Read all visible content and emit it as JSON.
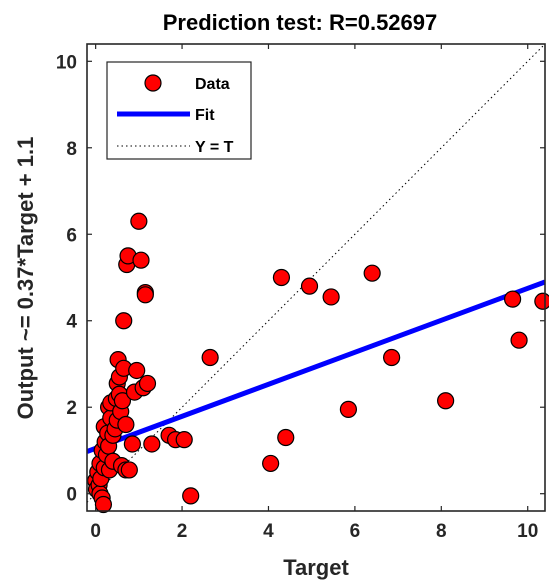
{
  "chart_data": {
    "type": "scatter",
    "title": "Prediction test: R=0.52697",
    "xlabel": "Target",
    "ylabel": "Output ~= 0.37*Target + 1.1",
    "xlim": [
      -0.2,
      10.4
    ],
    "ylim": [
      -0.4,
      10.4
    ],
    "xticks": [
      0,
      2,
      4,
      6,
      8,
      10
    ],
    "yticks": [
      0,
      2,
      4,
      6,
      8,
      10
    ],
    "grid": false,
    "legend_position": "top-left",
    "legend": [
      {
        "label": "Data",
        "marker": "circle",
        "color": "#ff0000"
      },
      {
        "label": "Fit",
        "style": "solid",
        "color": "#0000ff"
      },
      {
        "label": "Y = T",
        "style": "dotted",
        "color": "#000000"
      }
    ],
    "fit": {
      "slope": 0.37,
      "intercept": 1.05
    },
    "identity_line": {
      "from": -0.2,
      "to": 10.4
    },
    "series": [
      {
        "name": "Data",
        "color": "#ff0000",
        "points": [
          [
            0.0,
            0.3
          ],
          [
            0.02,
            0.1
          ],
          [
            0.05,
            0.5
          ],
          [
            0.08,
            0.2
          ],
          [
            0.1,
            0.0
          ],
          [
            0.1,
            0.7
          ],
          [
            0.12,
            0.35
          ],
          [
            0.15,
            -0.1
          ],
          [
            0.15,
            1.0
          ],
          [
            0.18,
            -0.25
          ],
          [
            0.2,
            0.6
          ],
          [
            0.2,
            1.55
          ],
          [
            0.22,
            1.2
          ],
          [
            0.25,
            0.9
          ],
          [
            0.28,
            1.4
          ],
          [
            0.3,
            1.1
          ],
          [
            0.3,
            2.0
          ],
          [
            0.32,
            0.55
          ],
          [
            0.35,
            1.75
          ],
          [
            0.35,
            2.1
          ],
          [
            0.4,
            1.35
          ],
          [
            0.4,
            0.75
          ],
          [
            0.45,
            1.5
          ],
          [
            0.48,
            2.2
          ],
          [
            0.5,
            1.7
          ],
          [
            0.5,
            2.55
          ],
          [
            0.52,
            3.1
          ],
          [
            0.55,
            2.7
          ],
          [
            0.55,
            2.3
          ],
          [
            0.58,
            1.9
          ],
          [
            0.6,
            0.65
          ],
          [
            0.62,
            2.15
          ],
          [
            0.65,
            2.9
          ],
          [
            0.65,
            4.0
          ],
          [
            0.7,
            1.6
          ],
          [
            0.7,
            0.55
          ],
          [
            0.72,
            5.3
          ],
          [
            0.75,
            5.5
          ],
          [
            0.78,
            0.55
          ],
          [
            0.85,
            1.15
          ],
          [
            0.9,
            2.35
          ],
          [
            0.95,
            2.85
          ],
          [
            1.0,
            6.3
          ],
          [
            1.05,
            5.4
          ],
          [
            1.1,
            2.45
          ],
          [
            1.15,
            4.65
          ],
          [
            1.15,
            4.6
          ],
          [
            1.2,
            2.55
          ],
          [
            1.3,
            1.15
          ],
          [
            1.7,
            1.35
          ],
          [
            1.85,
            1.25
          ],
          [
            2.05,
            1.25
          ],
          [
            2.2,
            -0.05
          ],
          [
            2.65,
            3.15
          ],
          [
            4.05,
            0.7
          ],
          [
            4.3,
            5.0
          ],
          [
            4.4,
            1.3
          ],
          [
            4.95,
            4.8
          ],
          [
            5.45,
            4.55
          ],
          [
            5.85,
            1.95
          ],
          [
            6.4,
            5.1
          ],
          [
            6.85,
            3.15
          ],
          [
            8.1,
            2.15
          ],
          [
            9.65,
            4.5
          ],
          [
            9.8,
            3.55
          ],
          [
            10.35,
            4.45
          ]
        ]
      }
    ]
  }
}
